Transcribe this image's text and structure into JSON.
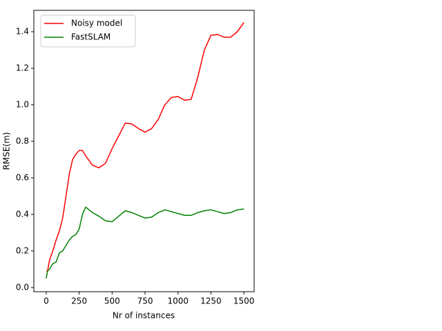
{
  "chart_data": {
    "type": "line",
    "xlabel": "Nr of instances",
    "ylabel": "RMSE(m)",
    "x": [
      0,
      10,
      25,
      50,
      75,
      100,
      125,
      150,
      175,
      200,
      225,
      250,
      275,
      300,
      350,
      400,
      450,
      500,
      550,
      600,
      650,
      700,
      750,
      800,
      850,
      900,
      950,
      1000,
      1050,
      1100,
      1150,
      1200,
      1250,
      1300,
      1350,
      1400,
      1450,
      1500
    ],
    "series": [
      {
        "name": "Noisy model",
        "color": "#ff0000",
        "values": [
          0.09,
          0.09,
          0.15,
          0.2,
          0.26,
          0.31,
          0.38,
          0.5,
          0.62,
          0.7,
          0.73,
          0.75,
          0.75,
          0.72,
          0.67,
          0.655,
          0.68,
          0.76,
          0.83,
          0.9,
          0.895,
          0.87,
          0.85,
          0.87,
          0.92,
          1.0,
          1.04,
          1.045,
          1.025,
          1.03,
          1.15,
          1.3,
          1.38,
          1.385,
          1.37,
          1.37,
          1.4,
          1.45
        ]
      },
      {
        "name": "FastSLAM",
        "color": "#008000",
        "values": [
          0.05,
          0.09,
          0.1,
          0.13,
          0.14,
          0.19,
          0.2,
          0.23,
          0.26,
          0.28,
          0.29,
          0.32,
          0.4,
          0.44,
          0.41,
          0.39,
          0.365,
          0.36,
          0.39,
          0.42,
          0.41,
          0.395,
          0.38,
          0.385,
          0.41,
          0.425,
          0.415,
          0.405,
          0.395,
          0.395,
          0.41,
          0.42,
          0.425,
          0.415,
          0.405,
          0.41,
          0.425,
          0.43
        ]
      }
    ],
    "xlim": [
      -94,
      1578
    ],
    "ylim": [
      -0.023,
      1.517
    ],
    "xticks": [
      0,
      250,
      500,
      750,
      1000,
      1250,
      1500
    ],
    "yticks": [
      {
        "value": 0,
        "label": "0.0"
      },
      0.2,
      0.4,
      0.6,
      0.8,
      {
        "value": 1,
        "label": "1.0"
      },
      1.2,
      1.4
    ],
    "legend": "upper-left"
  }
}
